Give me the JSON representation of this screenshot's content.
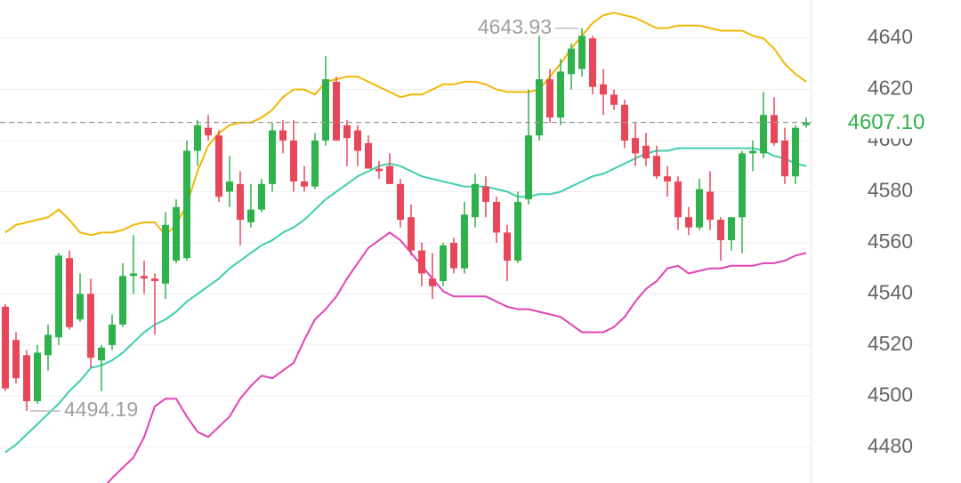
{
  "chart_data": {
    "type": "candlestick",
    "ylim": [
      4466,
      4655
    ],
    "yticks": [
      4480,
      4500,
      4520,
      4540,
      4560,
      4580,
      4600,
      4620,
      4640
    ],
    "grid": true,
    "up_color": "#2fb24b",
    "down_color": "#e8475a",
    "open": [
      4535,
      4522,
      4516,
      4498,
      4516,
      4523,
      4554,
      4530,
      4540,
      4514,
      4520,
      4528,
      4547,
      4547,
      4546,
      4544,
      4553,
      4554,
      4596,
      4605,
      4602,
      4580,
      4583,
      4568,
      4573,
      4583,
      4604,
      4600,
      4584,
      4582,
      4600,
      4623,
      4606,
      4604,
      4599,
      4589,
      4590,
      4583,
      4570,
      4557,
      4546,
      4545,
      4560,
      4550,
      4570,
      4582,
      4576,
      4564,
      4553,
      4577,
      4602,
      4624,
      4609,
      4626,
      4628,
      4640,
      4622,
      4618,
      4614,
      4601,
      4598,
      4594,
      4586,
      4584,
      4570,
      4566,
      4580,
      4569,
      4561,
      4570,
      4595,
      4595,
      4610,
      4600,
      4586,
      4606
    ],
    "high": [
      4536,
      4525,
      4518,
      4520,
      4528,
      4556,
      4557,
      4548,
      4546,
      4520,
      4532,
      4552,
      4563,
      4553,
      4548,
      4572,
      4577,
      4600,
      4608,
      4610,
      4604,
      4594,
      4588,
      4583,
      4585,
      4607,
      4608,
      4608,
      4590,
      4603,
      4633,
      4625,
      4608,
      4606,
      4602,
      4592,
      4595,
      4585,
      4575,
      4560,
      4556,
      4560,
      4562,
      4576,
      4587,
      4586,
      4578,
      4567,
      4580,
      4620,
      4641,
      4628,
      4632,
      4638,
      4643.93,
      4641,
      4628,
      4620,
      4616,
      4607,
      4603,
      4598,
      4590,
      4586,
      4574,
      4585,
      4588,
      4570,
      4570,
      4596,
      4600,
      4619,
      4617,
      4605,
      4606,
      4609
    ],
    "low": [
      4502,
      4505,
      4494.19,
      4497,
      4510,
      4520,
      4526,
      4529,
      4511,
      4502,
      4518,
      4527,
      4540,
      4540,
      4524,
      4538,
      4552,
      4553,
      4590,
      4600,
      4576,
      4574,
      4559,
      4566,
      4572,
      4580,
      4595,
      4580,
      4580,
      4581,
      4598,
      4600,
      4590,
      4590,
      4590,
      4585,
      4583,
      4566,
      4555,
      4543,
      4538,
      4543,
      4548,
      4548,
      4566,
      4570,
      4560,
      4545,
      4552,
      4575,
      4600,
      4607,
      4606,
      4620,
      4625,
      4618,
      4610,
      4612,
      4597,
      4590,
      4590,
      4585,
      4578,
      4565,
      4563,
      4565,
      4565,
      4553,
      4557,
      4556,
      4588,
      4593,
      4598,
      4583,
      4583,
      4605
    ],
    "close": [
      4503,
      4507,
      4498,
      4517,
      4524,
      4555,
      4527,
      4540,
      4515,
      4519,
      4528,
      4547,
      4548,
      4546,
      4545,
      4567,
      4574,
      4596,
      4606,
      4602,
      4578,
      4584,
      4569,
      4573,
      4583,
      4604,
      4600,
      4584,
      4582,
      4600,
      4624,
      4600,
      4601,
      4596,
      4589,
      4588,
      4583,
      4569,
      4557,
      4548,
      4543,
      4559,
      4550,
      4571,
      4583,
      4576,
      4564,
      4553,
      4576,
      4602,
      4624,
      4609,
      4627,
      4636,
      4641,
      4621,
      4618,
      4614,
      4600,
      4595,
      4593,
      4586,
      4584,
      4570,
      4566,
      4581,
      4569,
      4561,
      4570,
      4595,
      4596,
      4610,
      4599,
      4586,
      4605,
      4607.1
    ],
    "bands": [
      {
        "color": "#f2b705",
        "values": [
          4564,
          4567,
          4568,
          4569,
          4570,
          4573,
          4569,
          4564,
          4563,
          4564,
          4564,
          4565,
          4567,
          4568,
          4568,
          4563,
          4567,
          4575,
          4588,
          4598,
          4603,
          4606,
          4607,
          4607,
          4609,
          4612,
          4617,
          4620,
          4620,
          4618,
          4623,
          4624,
          4625,
          4625,
          4623,
          4621,
          4619,
          4617,
          4618,
          4618,
          4620,
          4622,
          4622,
          4623,
          4623,
          4622,
          4620,
          4619,
          4619,
          4619,
          4620,
          4625,
          4630,
          4636,
          4641,
          4646,
          4649,
          4650,
          4649,
          4648,
          4646,
          4644,
          4644,
          4645,
          4645,
          4645,
          4644,
          4643,
          4643,
          4643,
          4641,
          4640,
          4636,
          4630,
          4626,
          4623
        ]
      },
      {
        "color": "#3ecfae",
        "values": [
          4478,
          4481,
          4485,
          4489,
          4493,
          4497,
          4502,
          4506,
          4511,
          4512,
          4514,
          4517,
          4521,
          4525,
          4528,
          4530,
          4533,
          4537,
          4540,
          4543,
          4546,
          4550,
          4553,
          4556,
          4559,
          4561,
          4564,
          4566,
          4569,
          4573,
          4577,
          4580,
          4583,
          4586,
          4588,
          4590,
          4591,
          4590,
          4588,
          4586,
          4585,
          4584,
          4583,
          4582,
          4582,
          4582,
          4581,
          4580,
          4578,
          4578,
          4579,
          4579,
          4580,
          4582,
          4584,
          4586,
          4587,
          4589,
          4591,
          4593,
          4595,
          4596,
          4596,
          4597,
          4597,
          4597,
          4597,
          4597,
          4597,
          4597,
          4597,
          4596,
          4594,
          4593,
          4591,
          4590
        ]
      },
      {
        "color": "#e043b6",
        "values": [
          null,
          null,
          null,
          null,
          null,
          null,
          null,
          null,
          null,
          4463,
          4468,
          4472,
          4476,
          4484,
          4496,
          4499,
          4499,
          4492,
          4486,
          4484,
          4488,
          4492,
          4499,
          4504,
          4508,
          4507,
          4510,
          4513,
          4522,
          4530,
          4534,
          4539,
          4546,
          4552,
          4558,
          4561,
          4564,
          4561,
          4556,
          4551,
          4546,
          4541,
          4539,
          4539,
          4539,
          4539,
          4537,
          4535,
          4534,
          4534,
          4533,
          4532,
          4531,
          4528,
          4525,
          4525,
          4525,
          4527,
          4531,
          4537,
          4542,
          4545,
          4550,
          4551,
          4548,
          4549,
          4550,
          4550,
          4551,
          4551,
          4551,
          4552,
          4552,
          4553,
          4555,
          4556
        ]
      }
    ],
    "max_label": 4643.93,
    "min_label": 4494.19,
    "last_price": {
      "value": 4607.1,
      "label": "4607.10"
    },
    "last_price_color": "#2fb24b"
  }
}
